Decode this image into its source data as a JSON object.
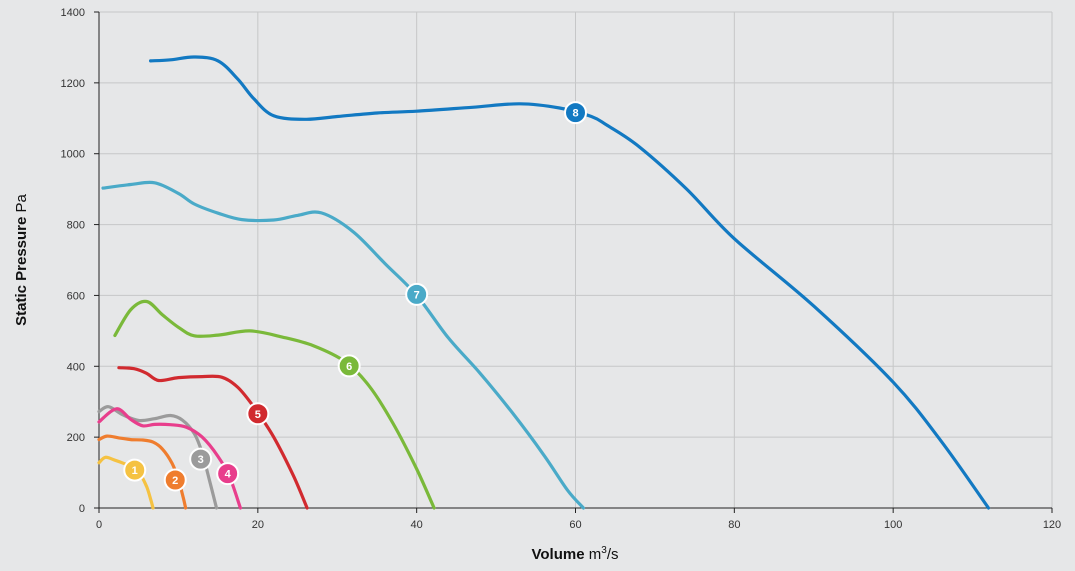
{
  "chart_data": {
    "type": "line",
    "xlabel_bold": "Volume",
    "xlabel_unit_base": "m",
    "xlabel_unit_sup": "3",
    "xlabel_unit_rest": "/s",
    "ylabel_bold": "Static Pressure",
    "ylabel_unit": "Pa",
    "xlim": [
      0,
      120
    ],
    "ylim": [
      0,
      1400
    ],
    "xticks": [
      "0",
      "20",
      "40",
      "60",
      "80",
      "100",
      "120"
    ],
    "yticks": [
      "0",
      "200",
      "400",
      "600",
      "800",
      "1000",
      "1200",
      "1400"
    ],
    "grid": true,
    "series": [
      {
        "marker_label": "1",
        "color": "#f5c242",
        "marker": [
          4.5,
          107
        ],
        "points": [
          [
            0,
            128
          ],
          [
            0.8,
            143
          ],
          [
            2,
            135
          ],
          [
            3.2,
            125
          ],
          [
            4.2,
            115
          ],
          [
            5.2,
            95
          ],
          [
            6,
            60
          ],
          [
            6.5,
            25
          ],
          [
            6.8,
            0
          ]
        ]
      },
      {
        "marker_label": "2",
        "color": "#ef7d2e",
        "marker": [
          9.6,
          79
        ],
        "points": [
          [
            0,
            193
          ],
          [
            1,
            203
          ],
          [
            2.5,
            198
          ],
          [
            4,
            193
          ],
          [
            5.5,
            192
          ],
          [
            6.8,
            186
          ],
          [
            8,
            166
          ],
          [
            9.2,
            126
          ],
          [
            10,
            80
          ],
          [
            10.6,
            30
          ],
          [
            10.9,
            0
          ]
        ]
      },
      {
        "marker_label": "3",
        "color": "#9b9b9b",
        "marker": [
          12.8,
          138
        ],
        "points": [
          [
            0,
            272
          ],
          [
            1.2,
            286
          ],
          [
            3,
            263
          ],
          [
            5,
            247
          ],
          [
            7,
            252
          ],
          [
            9,
            261
          ],
          [
            10.5,
            248
          ],
          [
            12,
            210
          ],
          [
            13,
            155
          ],
          [
            14,
            70
          ],
          [
            14.8,
            0
          ]
        ]
      },
      {
        "marker_label": "4",
        "color": "#e83e8c",
        "marker": [
          16.2,
          97
        ],
        "points": [
          [
            0,
            243
          ],
          [
            2.2,
            280
          ],
          [
            4,
            250
          ],
          [
            5.5,
            232
          ],
          [
            7,
            236
          ],
          [
            9,
            235
          ],
          [
            11,
            228
          ],
          [
            13,
            200
          ],
          [
            15,
            145
          ],
          [
            16.5,
            85
          ],
          [
            17.8,
            0
          ]
        ]
      },
      {
        "marker_label": "5",
        "color": "#d12a2f",
        "marker": [
          20,
          266
        ],
        "points": [
          [
            2.5,
            396
          ],
          [
            4.5,
            393
          ],
          [
            6,
            380
          ],
          [
            7.5,
            360
          ],
          [
            10,
            368
          ],
          [
            13,
            371
          ],
          [
            15.5,
            369
          ],
          [
            17.5,
            340
          ],
          [
            19.5,
            285
          ],
          [
            22,
            200
          ],
          [
            24.5,
            90
          ],
          [
            26.2,
            0
          ]
        ]
      },
      {
        "marker_label": "6",
        "color": "#7ab93a",
        "marker": [
          31.5,
          401
        ],
        "points": [
          [
            2,
            487
          ],
          [
            4,
            560
          ],
          [
            6,
            583
          ],
          [
            8,
            545
          ],
          [
            10,
            510
          ],
          [
            12,
            486
          ],
          [
            15,
            488
          ],
          [
            19,
            500
          ],
          [
            23,
            483
          ],
          [
            27,
            458
          ],
          [
            31,
            413
          ],
          [
            34,
            345
          ],
          [
            37,
            240
          ],
          [
            40,
            110
          ],
          [
            42.2,
            0
          ]
        ]
      },
      {
        "marker_label": "7",
        "color": "#4aaac8",
        "marker": [
          40,
          603
        ],
        "points": [
          [
            0.5,
            903
          ],
          [
            4,
            913
          ],
          [
            7,
            918
          ],
          [
            10,
            888
          ],
          [
            12,
            858
          ],
          [
            15,
            832
          ],
          [
            18,
            814
          ],
          [
            22,
            813
          ],
          [
            25,
            826
          ],
          [
            28,
            833
          ],
          [
            32,
            780
          ],
          [
            36,
            690
          ],
          [
            40,
            600
          ],
          [
            44,
            480
          ],
          [
            48,
            380
          ],
          [
            52,
            270
          ],
          [
            56,
            150
          ],
          [
            59,
            50
          ],
          [
            61,
            0
          ]
        ]
      },
      {
        "marker_label": "8",
        "color": "#1279c2",
        "marker": [
          60,
          1116
        ],
        "points": [
          [
            6.5,
            1262
          ],
          [
            9,
            1265
          ],
          [
            12,
            1273
          ],
          [
            15,
            1262
          ],
          [
            17.5,
            1210
          ],
          [
            19.5,
            1155
          ],
          [
            22,
            1107
          ],
          [
            26,
            1097
          ],
          [
            30,
            1105
          ],
          [
            35,
            1115
          ],
          [
            40,
            1120
          ],
          [
            47,
            1131
          ],
          [
            53,
            1141
          ],
          [
            58,
            1129
          ],
          [
            62,
            1105
          ],
          [
            64,
            1080
          ],
          [
            68,
            1020
          ],
          [
            74,
            900
          ],
          [
            80,
            760
          ],
          [
            90,
            570
          ],
          [
            100,
            355
          ],
          [
            106,
            190
          ],
          [
            112,
            0
          ]
        ]
      }
    ]
  }
}
